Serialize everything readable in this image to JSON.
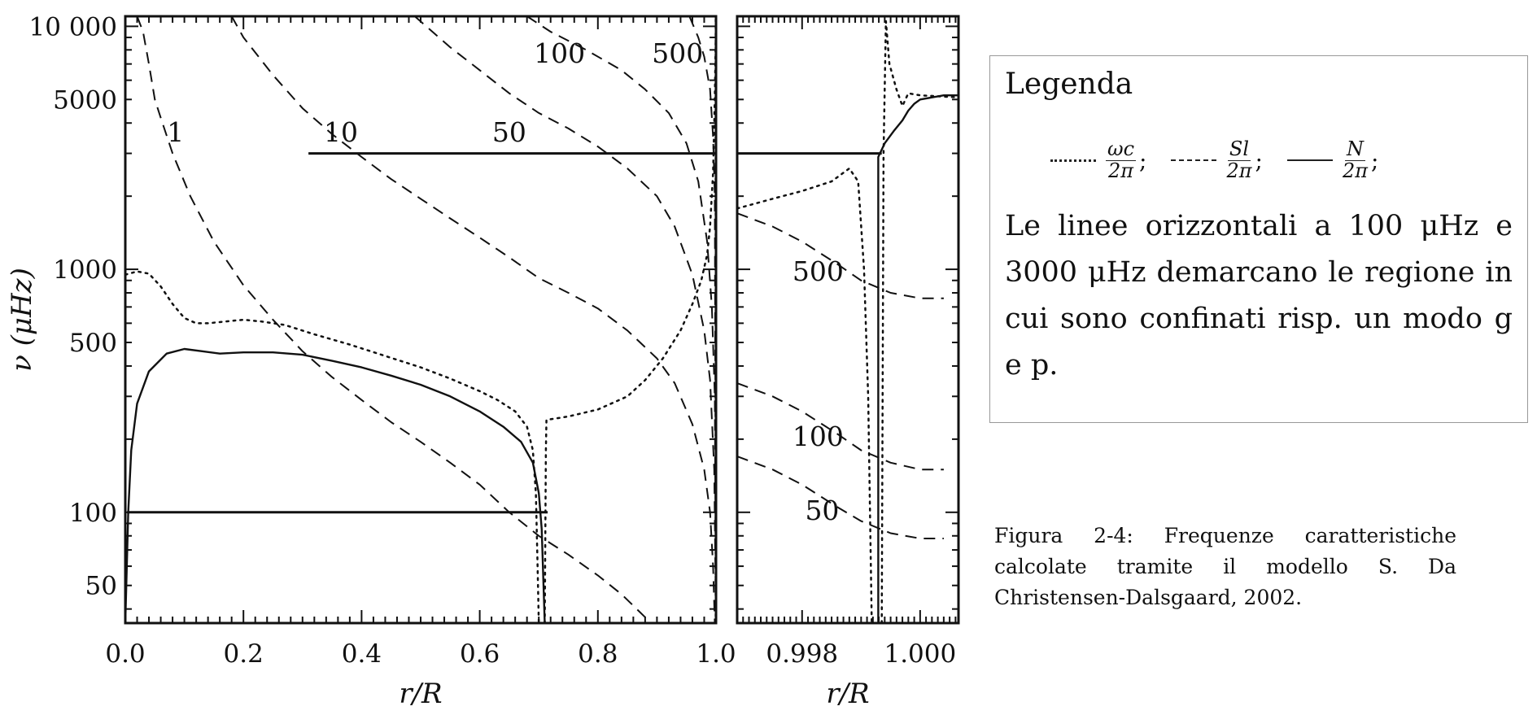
{
  "chart_data": [
    {
      "type": "line",
      "panel": "main",
      "xlabel": "r/R",
      "ylabel": "ν (μHz)",
      "xlim": [
        0.0,
        1.0
      ],
      "ylim": [
        35,
        11000
      ],
      "y_scale": "log",
      "x_ticks": [
        "0.0",
        "0.2",
        "0.4",
        "0.6",
        "0.8",
        "1.0"
      ],
      "y_ticks": [
        {
          "value": 50,
          "label": "50"
        },
        {
          "value": 100,
          "label": "100"
        },
        {
          "value": 500,
          "label": "500"
        },
        {
          "value": 1000,
          "label": "1000"
        },
        {
          "value": 5000,
          "label": "5000"
        },
        {
          "value": 10000,
          "label": "10 000"
        }
      ],
      "series": [
        {
          "style": "dotted",
          "curve": "acoustic cutoff",
          "points": [
            [
              0.0,
              950
            ],
            [
              0.02,
              980
            ],
            [
              0.04,
              960
            ],
            [
              0.06,
              850
            ],
            [
              0.08,
              720
            ],
            [
              0.1,
              630
            ],
            [
              0.12,
              600
            ],
            [
              0.14,
              600
            ],
            [
              0.17,
              610
            ],
            [
              0.2,
              620
            ],
            [
              0.23,
              610
            ],
            [
              0.27,
              590
            ],
            [
              0.32,
              540
            ],
            [
              0.38,
              490
            ],
            [
              0.44,
              440
            ],
            [
              0.5,
              395
            ],
            [
              0.55,
              355
            ],
            [
              0.6,
              315
            ],
            [
              0.63,
              290
            ],
            [
              0.66,
              260
            ],
            [
              0.68,
              225
            ],
            [
              0.69,
              180
            ],
            [
              0.695,
              120
            ],
            [
              0.698,
              60
            ],
            [
              0.7,
              35
            ]
          ]
        },
        {
          "style": "dotted",
          "curve": "acoustic cutoff",
          "points": [
            [
              0.71,
              35
            ],
            [
              0.712,
              180
            ],
            [
              0.713,
              240
            ],
            [
              0.75,
              248
            ],
            [
              0.8,
              265
            ],
            [
              0.85,
              300
            ],
            [
              0.88,
              350
            ],
            [
              0.91,
              430
            ],
            [
              0.94,
              560
            ],
            [
              0.96,
              720
            ],
            [
              0.975,
              900
            ],
            [
              0.985,
              1150
            ],
            [
              0.99,
              1500
            ],
            [
              0.995,
              2500
            ],
            [
              0.998,
              5000
            ],
            [
              1.0,
              11000
            ]
          ]
        },
        {
          "style": "solid",
          "curve": "N",
          "points": [
            [
              0.0,
              35
            ],
            [
              0.005,
              100
            ],
            [
              0.01,
              180
            ],
            [
              0.02,
              280
            ],
            [
              0.04,
              380
            ],
            [
              0.07,
              450
            ],
            [
              0.1,
              470
            ],
            [
              0.13,
              460
            ],
            [
              0.16,
              450
            ],
            [
              0.2,
              455
            ],
            [
              0.25,
              455
            ],
            [
              0.3,
              445
            ],
            [
              0.35,
              420
            ],
            [
              0.4,
              395
            ],
            [
              0.45,
              365
            ],
            [
              0.5,
              335
            ],
            [
              0.55,
              300
            ],
            [
              0.6,
              260
            ],
            [
              0.64,
              225
            ],
            [
              0.67,
              195
            ],
            [
              0.69,
              160
            ],
            [
              0.7,
              120
            ],
            [
              0.705,
              85
            ],
            [
              0.708,
              50
            ],
            [
              0.71,
              35
            ]
          ]
        },
        {
          "style": "solid",
          "curve": "100 μHz line",
          "points": [
            [
              0.003,
              100
            ],
            [
              0.715,
              100
            ]
          ]
        },
        {
          "style": "solid",
          "curve": "3000 μHz line",
          "points": [
            [
              0.31,
              3000
            ],
            [
              1.0,
              3000
            ]
          ]
        },
        {
          "style": "dashed",
          "curve": "l=1",
          "points": [
            [
              0.02,
              11000
            ],
            [
              0.03,
              9500
            ],
            [
              0.04,
              7000
            ],
            [
              0.05,
              5000
            ],
            [
              0.06,
              4200
            ],
            [
              0.08,
              3000
            ],
            [
              0.11,
              2000
            ],
            [
              0.15,
              1300
            ],
            [
              0.2,
              860
            ],
            [
              0.25,
              620
            ],
            [
              0.3,
              460
            ],
            [
              0.35,
              360
            ],
            [
              0.4,
              290
            ],
            [
              0.45,
              235
            ],
            [
              0.5,
              195
            ],
            [
              0.55,
              160
            ],
            [
              0.6,
              130
            ],
            [
              0.65,
              100
            ],
            [
              0.7,
              80
            ],
            [
              0.75,
              67
            ],
            [
              0.8,
              55
            ],
            [
              0.84,
              46
            ],
            [
              0.88,
              37
            ],
            [
              0.89,
              35
            ]
          ]
        },
        {
          "style": "dashed",
          "curve": "l=10",
          "points": [
            [
              0.18,
              11000
            ],
            [
              0.2,
              9000
            ],
            [
              0.25,
              6300
            ],
            [
              0.3,
              4600
            ],
            [
              0.35,
              3600
            ],
            [
              0.4,
              2900
            ],
            [
              0.45,
              2350
            ],
            [
              0.5,
              1950
            ],
            [
              0.55,
              1620
            ],
            [
              0.6,
              1350
            ],
            [
              0.65,
              1120
            ],
            [
              0.7,
              920
            ],
            [
              0.75,
              800
            ],
            [
              0.8,
              690
            ],
            [
              0.85,
              560
            ],
            [
              0.9,
              430
            ],
            [
              0.93,
              340
            ],
            [
              0.96,
              230
            ],
            [
              0.98,
              150
            ],
            [
              0.99,
              100
            ],
            [
              0.995,
              60
            ],
            [
              0.998,
              35
            ]
          ]
        },
        {
          "style": "dashed",
          "curve": "l=50",
          "points": [
            [
              0.49,
              11000
            ],
            [
              0.55,
              8200
            ],
            [
              0.6,
              6600
            ],
            [
              0.65,
              5300
            ],
            [
              0.7,
              4400
            ],
            [
              0.75,
              3800
            ],
            [
              0.8,
              3200
            ],
            [
              0.85,
              2600
            ],
            [
              0.9,
              2000
            ],
            [
              0.93,
              1500
            ],
            [
              0.96,
              950
            ],
            [
              0.98,
              560
            ],
            [
              0.99,
              350
            ],
            [
              0.997,
              150
            ],
            [
              1.0,
              35
            ]
          ]
        },
        {
          "style": "dashed",
          "curve": "l=100",
          "points": [
            [
              0.68,
              11000
            ],
            [
              0.72,
              9500
            ],
            [
              0.78,
              8000
            ],
            [
              0.84,
              6600
            ],
            [
              0.88,
              5500
            ],
            [
              0.92,
              4400
            ],
            [
              0.95,
              3300
            ],
            [
              0.97,
              2300
            ],
            [
              0.985,
              1300
            ],
            [
              0.993,
              700
            ],
            [
              0.998,
              300
            ],
            [
              1.0,
              35
            ]
          ]
        },
        {
          "style": "dashed",
          "curve": "l=500",
          "points": [
            [
              0.955,
              11000
            ],
            [
              0.97,
              9000
            ],
            [
              0.98,
              7500
            ],
            [
              0.99,
              5500
            ],
            [
              0.995,
              3500
            ],
            [
              0.998,
              2000
            ],
            [
              1.0,
              35
            ]
          ]
        },
        {
          "style": "dotted",
          "curve": "cutoff near surface",
          "points": [
            [
              0.9995,
              35
            ],
            [
              0.9995,
              11000
            ]
          ]
        }
      ],
      "labels": [
        {
          "text": "1",
          "x": 0.085,
          "y": 3350
        },
        {
          "text": "10",
          "x": 0.365,
          "y": 3350
        },
        {
          "text": "50",
          "x": 0.65,
          "y": 3350
        },
        {
          "text": "100",
          "x": 0.735,
          "y": 7100
        },
        {
          "text": "500",
          "x": 0.935,
          "y": 7100
        }
      ]
    },
    {
      "type": "line",
      "panel": "zoom",
      "xlabel": "r/R",
      "xlim": [
        0.9969,
        1.00065
      ],
      "ylim": [
        35,
        11000
      ],
      "y_scale": "log",
      "x_ticks": [
        {
          "value": 0.998,
          "label": "0.998"
        },
        {
          "value": 1.0,
          "label": "1.000"
        }
      ],
      "series": [
        {
          "style": "dotted",
          "curve": "acoustic cutoff",
          "points": [
            [
              0.9969,
              1780
            ],
            [
              0.9975,
              1950
            ],
            [
              0.998,
              2100
            ],
            [
              0.9985,
              2300
            ],
            [
              0.9988,
              2600
            ],
            [
              0.99895,
              2300
            ],
            [
              0.99905,
              1000
            ],
            [
              0.99912,
              300
            ],
            [
              0.99918,
              35
            ]
          ]
        },
        {
          "style": "dotted",
          "curve": "acoustic cutoff",
          "points": [
            [
              0.99935,
              35
            ],
            [
              0.99938,
              3000
            ],
            [
              0.99942,
              10500
            ],
            [
              0.99948,
              7000
            ],
            [
              0.9996,
              5500
            ],
            [
              0.9997,
              4700
            ],
            [
              0.9998,
              5300
            ],
            [
              1.0,
              5200
            ],
            [
              1.00065,
              5100
            ]
          ]
        },
        {
          "style": "solid",
          "curve": "N",
          "points": [
            [
              0.99929,
              35
            ],
            [
              0.99929,
              2900
            ],
            [
              0.9994,
              3300
            ],
            [
              0.99955,
              3700
            ],
            [
              0.9997,
              4100
            ],
            [
              0.9998,
              4500
            ],
            [
              0.9999,
              4800
            ],
            [
              1.0,
              5000
            ],
            [
              1.0004,
              5200
            ],
            [
              1.00065,
              5200
            ]
          ]
        },
        {
          "style": "solid",
          "curve": "3000 μHz line",
          "points": [
            [
              0.9969,
              3000
            ],
            [
              0.99935,
              3000
            ]
          ]
        },
        {
          "style": "dashed",
          "curve": "l=500",
          "points": [
            [
              0.9969,
              1700
            ],
            [
              0.9975,
              1500
            ],
            [
              0.998,
              1300
            ],
            [
              0.9986,
              1050
            ],
            [
              0.999,
              900
            ],
            [
              0.9995,
              800
            ],
            [
              1.0,
              760
            ],
            [
              1.0004,
              760
            ]
          ]
        },
        {
          "style": "dashed",
          "curve": "l=100",
          "points": [
            [
              0.9969,
              340
            ],
            [
              0.9975,
              300
            ],
            [
              0.998,
              260
            ],
            [
              0.9986,
              210
            ],
            [
              0.999,
              180
            ],
            [
              0.9995,
              160
            ],
            [
              1.0,
              150
            ],
            [
              1.0004,
              150
            ]
          ]
        },
        {
          "style": "dashed",
          "curve": "l=50",
          "points": [
            [
              0.9969,
              170
            ],
            [
              0.9975,
              150
            ],
            [
              0.998,
              130
            ],
            [
              0.9986,
              105
            ],
            [
              0.999,
              92
            ],
            [
              0.9995,
              82
            ],
            [
              1.0,
              78
            ],
            [
              1.0004,
              78
            ]
          ]
        }
      ],
      "labels": [
        {
          "text": "500",
          "x": 0.99827,
          "y": 900
        },
        {
          "text": "100",
          "x": 0.99827,
          "y": 188
        },
        {
          "text": "50",
          "x": 0.99834,
          "y": 93
        }
      ]
    }
  ],
  "legend": {
    "title": "Legenda",
    "items": [
      {
        "style": "dotted",
        "num": "ωc",
        "den": "2π",
        "sep": ";"
      },
      {
        "style": "dashed",
        "num": "Sl",
        "den": "2π",
        "sep": ";"
      },
      {
        "style": "solid",
        "num": "N",
        "den": "2π",
        "sep": ";"
      }
    ],
    "text": "Le linee orizzontali a 100 μHz e 3000 μHz demarcano le regione in cui sono confinati risp. un modo g e p."
  },
  "caption": "Figura 2-4: Frequenze caratteristiche calcolate tramite il modello S. Da Christensen-Dalsgaard, 2002."
}
